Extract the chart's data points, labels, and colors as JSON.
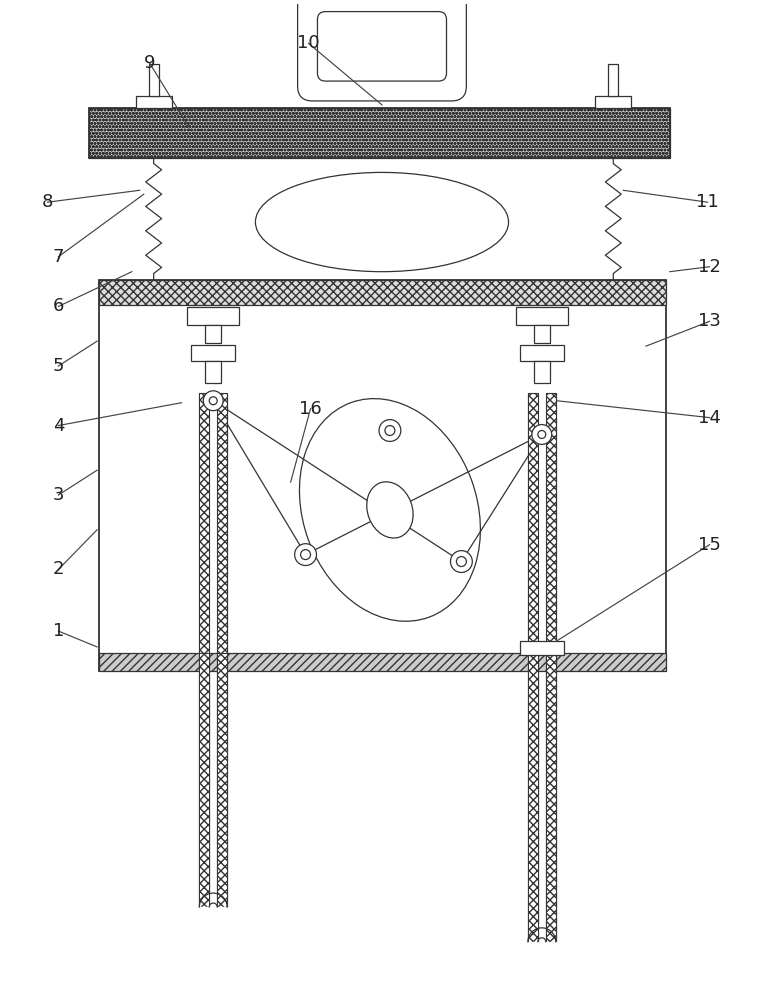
{
  "bg_color": "#ffffff",
  "lc": "#333333",
  "lw_main": 1.3,
  "lw_thin": 0.9,
  "fig_width": 7.6,
  "fig_height": 10.0,
  "labels": [
    [
      "1",
      56,
      368,
      95,
      352
    ],
    [
      "2",
      56,
      430,
      95,
      470
    ],
    [
      "3",
      56,
      505,
      95,
      530
    ],
    [
      "4",
      56,
      575,
      180,
      598
    ],
    [
      "5",
      56,
      635,
      95,
      660
    ],
    [
      "6",
      56,
      695,
      130,
      730
    ],
    [
      "7",
      56,
      745,
      142,
      808
    ],
    [
      "8",
      45,
      800,
      138,
      812
    ],
    [
      "9",
      148,
      940,
      188,
      875
    ],
    [
      "10",
      308,
      960,
      382,
      898
    ],
    [
      "11",
      710,
      800,
      625,
      812
    ],
    [
      "12",
      712,
      735,
      672,
      730
    ],
    [
      "13",
      712,
      680,
      648,
      655
    ],
    [
      "14",
      712,
      583,
      558,
      600
    ],
    [
      "15",
      712,
      455,
      558,
      358
    ],
    [
      "16",
      310,
      592,
      290,
      518
    ]
  ]
}
